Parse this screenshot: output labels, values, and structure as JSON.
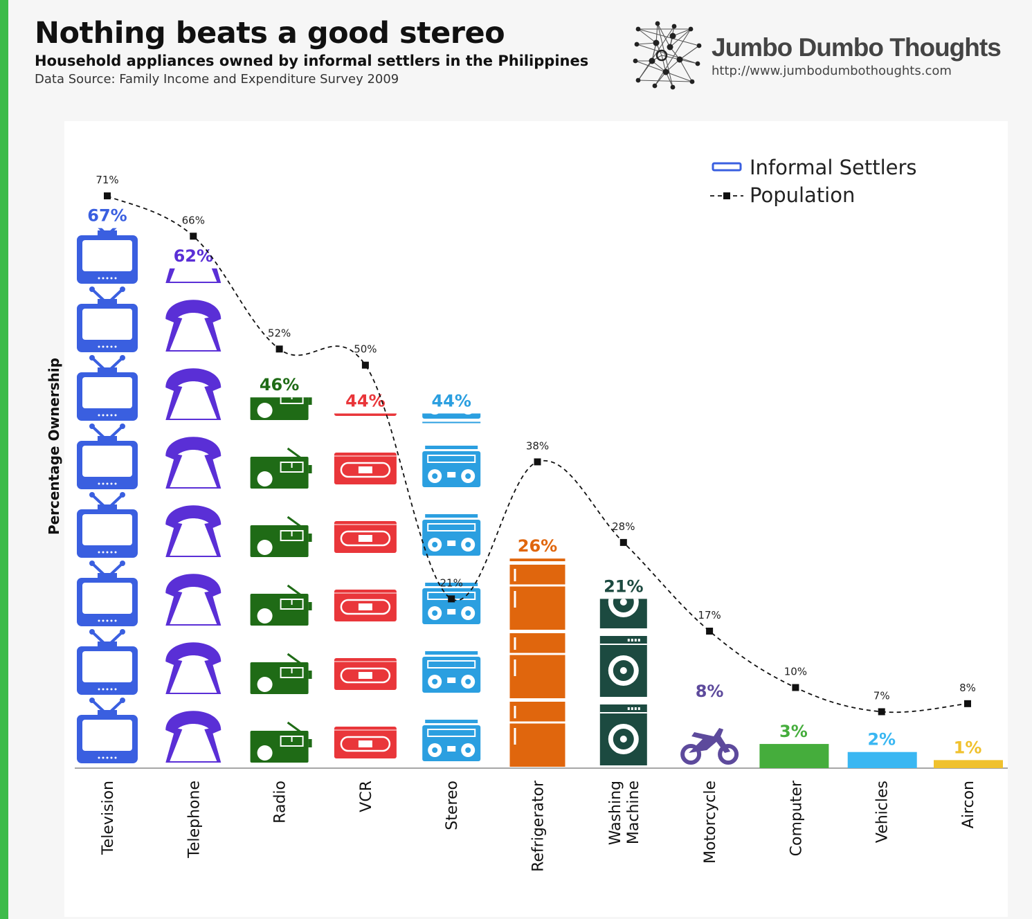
{
  "header": {
    "title": "Nothing beats a good stereo",
    "subtitle": "Household appliances owned by informal settlers in the Philippines",
    "source": "Data Source: Family Income and Expenditure Survey 2009"
  },
  "brand": {
    "name": "Jumbo Dumbo Thoughts",
    "url": "http://www.jumbodumbothoughts.com"
  },
  "colors": {
    "television": "#3a5fe0",
    "telephone": "#5a2fd6",
    "radio": "#1f6b16",
    "vcr": "#e9363a",
    "stereo": "#2b9fe0",
    "refrigerator": "#e0660d",
    "washing_machine": "#1c4a40",
    "motorcycle": "#5d4a9c",
    "computer": "#45ad3c",
    "vehicles": "#3ab7f2",
    "aircon": "#f0c12d"
  },
  "chart_data": {
    "type": "bar",
    "ylabel": "Percentage Ownership",
    "ylim": [
      0,
      80
    ],
    "categories": [
      "Television",
      "Telephone",
      "Radio",
      "VCR",
      "Stereo",
      "Refrigerator",
      "Washing Machine",
      "Motorcycle",
      "Computer",
      "Vehicles",
      "Aircon"
    ],
    "category_label_lines": [
      [
        "Television"
      ],
      [
        "Telephone"
      ],
      [
        "Radio"
      ],
      [
        "VCR"
      ],
      [
        "Stereo"
      ],
      [
        "Refrigerator"
      ],
      [
        "Washing",
        "Machine"
      ],
      [
        "Motorcycle"
      ],
      [
        "Computer"
      ],
      [
        "Vehicles"
      ],
      [
        "Aircon"
      ]
    ],
    "icons": [
      "tv-icon",
      "telephone-icon",
      "radio-icon",
      "vcr-icon",
      "stereo-icon",
      "refrigerator-icon",
      "washing-machine-icon",
      "motorcycle-icon",
      "bar",
      "bar",
      "bar"
    ],
    "series": [
      {
        "name": "Informal Settlers",
        "values": [
          67,
          62,
          46,
          44,
          44,
          26,
          21,
          8,
          3,
          2,
          1
        ],
        "labels": [
          "67%",
          "62%",
          "46%",
          "44%",
          "44%",
          "26%",
          "21%",
          "8%",
          "3%",
          "2%",
          "1%"
        ]
      },
      {
        "name": "Population",
        "values": [
          71,
          66,
          52,
          50,
          21,
          38,
          28,
          17,
          10,
          7,
          8
        ],
        "labels": [
          "71%",
          "66%",
          "52%",
          "50%",
          "21%",
          "38%",
          "28%",
          "17%",
          "10%",
          "7%",
          "8%"
        ]
      }
    ],
    "legend": {
      "position": "top-right",
      "entries": [
        "Informal Settlers",
        "Population"
      ]
    }
  }
}
